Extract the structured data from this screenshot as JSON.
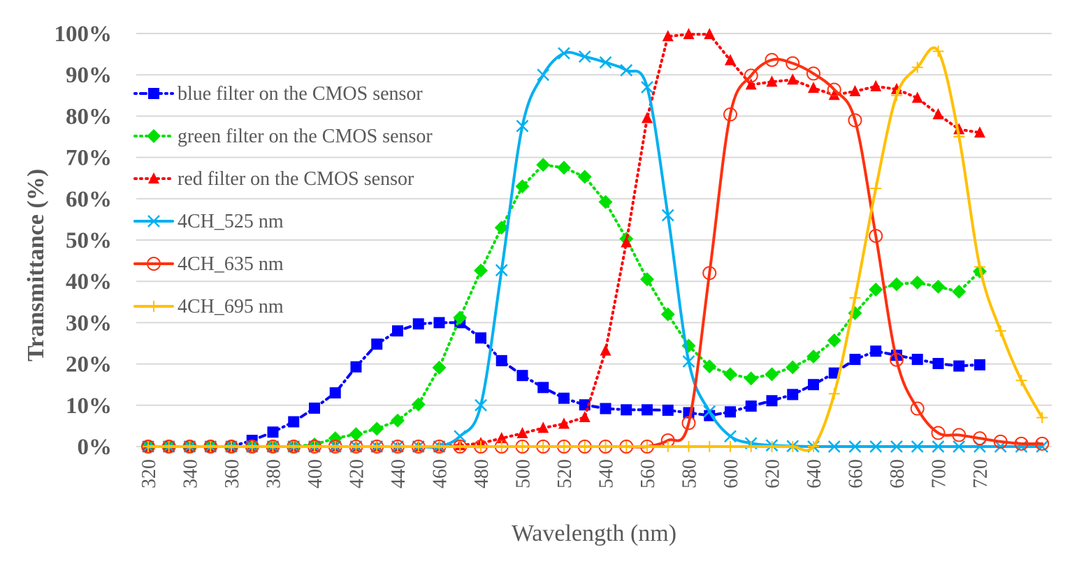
{
  "chart_data": {
    "type": "line",
    "title": "",
    "xlabel": "Wavelength (nm)",
    "ylabel": "Transmittance (%)",
    "xlim": [
      320,
      750
    ],
    "ylim": [
      0,
      100
    ],
    "grid": true,
    "legend_position": "top-left",
    "x_tick_labels": [
      "320",
      "340",
      "360",
      "380",
      "400",
      "420",
      "440",
      "460",
      "480",
      "500",
      "520",
      "540",
      "560",
      "580",
      "600",
      "620",
      "640",
      "660",
      "680",
      "700",
      "720"
    ],
    "y_tick_labels": [
      "0%",
      "10%",
      "20%",
      "30%",
      "40%",
      "50%",
      "60%",
      "70%",
      "80%",
      "90%",
      "100%"
    ],
    "x": [
      320,
      330,
      340,
      350,
      360,
      370,
      380,
      390,
      400,
      410,
      420,
      430,
      440,
      450,
      460,
      470,
      480,
      490,
      500,
      510,
      520,
      530,
      540,
      550,
      560,
      570,
      580,
      590,
      600,
      610,
      620,
      630,
      640,
      650,
      660,
      670,
      680,
      690,
      700,
      710,
      720,
      730,
      740,
      750
    ],
    "series": [
      {
        "name": "blue filter on the CMOS sensor",
        "color": "#0000ff",
        "style": "dashdot",
        "marker": "square",
        "values": [
          0,
          0,
          0,
          0,
          0,
          1.5,
          3.5,
          6,
          9.3,
          13,
          19.3,
          24.8,
          28,
          29.7,
          30,
          30,
          26.3,
          20.8,
          17.2,
          14.3,
          11.7,
          10.1,
          9.2,
          8.9,
          8.9,
          8.8,
          8.2,
          7.5,
          8.4,
          9.8,
          11.1,
          12.6,
          15,
          17.8,
          21.1,
          23.1,
          22.1,
          21.1,
          20.1,
          19.5,
          19.8,
          null,
          null,
          null
        ]
      },
      {
        "name": "green filter on the CMOS sensor",
        "color": "#00e000",
        "style": "dotted",
        "marker": "diamond",
        "values": [
          0,
          0,
          0,
          0,
          0,
          0,
          0,
          0,
          0.5,
          2,
          3,
          4.3,
          6.3,
          10.2,
          19.1,
          31.2,
          42.6,
          53,
          63,
          68.2,
          67.5,
          65.3,
          59.2,
          50.3,
          40.5,
          32,
          24.4,
          19.4,
          17.5,
          16.5,
          17.5,
          19.2,
          21.8,
          25.7,
          32.3,
          38,
          39.3,
          39.7,
          38.7,
          37.5,
          42.4,
          null,
          null,
          null
        ]
      },
      {
        "name": "red filter on the CMOS sensor",
        "color": "#ff0000",
        "style": "dotted",
        "marker": "triangle",
        "values": [
          0,
          0,
          0,
          0,
          0,
          0,
          0,
          0,
          0,
          0,
          0,
          0,
          0,
          0,
          0,
          0.3,
          0.8,
          2,
          3.2,
          4.5,
          5.5,
          7.1,
          23.2,
          49.4,
          79.5,
          99.3,
          99.8,
          99.8,
          93.5,
          87.6,
          88.3,
          88.8,
          86.8,
          85.1,
          86,
          87.2,
          86.5,
          84.4,
          80.4,
          76.8,
          76,
          null,
          null,
          null
        ]
      },
      {
        "name": "4CH_525 nm",
        "color": "#00b0f0",
        "style": "solid",
        "marker": "x",
        "values": [
          0,
          0,
          0,
          0,
          0,
          0,
          0,
          0,
          0,
          0,
          0,
          0,
          0,
          0,
          0,
          2.5,
          10,
          42.7,
          77.6,
          90,
          95.2,
          94.4,
          93,
          91.1,
          87,
          56,
          20.6,
          8.5,
          2.5,
          0.8,
          0.3,
          0.1,
          0,
          0,
          0,
          0,
          0,
          0,
          0,
          0,
          0,
          0,
          0,
          0
        ]
      },
      {
        "name": "4CH_635 nm",
        "color": "#ff3010",
        "style": "solid",
        "marker": "circle",
        "values": [
          0,
          0,
          0,
          0,
          0,
          0,
          0,
          0,
          0,
          0,
          0,
          0,
          0,
          0,
          0,
          0,
          0,
          0,
          0,
          0,
          0,
          0,
          0,
          0,
          0,
          1.5,
          5.7,
          42,
          80.4,
          89.8,
          93.6,
          92.8,
          90.3,
          86.4,
          79,
          51,
          21,
          9.2,
          3.3,
          2.8,
          2,
          1.2,
          0.7,
          0.7
        ]
      },
      {
        "name": "4CH_695 nm",
        "color": "#ffc000",
        "style": "solid",
        "marker": "plus",
        "values": [
          0,
          0,
          0,
          0,
          0,
          0,
          0,
          0,
          0,
          0,
          0,
          0,
          0,
          0,
          0,
          0,
          0,
          0,
          0,
          0,
          0,
          0,
          0,
          0,
          0,
          0,
          0,
          0,
          0,
          0,
          0,
          0,
          0,
          12.8,
          36,
          62.5,
          85,
          91.8,
          95.7,
          75,
          43.5,
          28,
          16,
          7
        ]
      }
    ]
  }
}
